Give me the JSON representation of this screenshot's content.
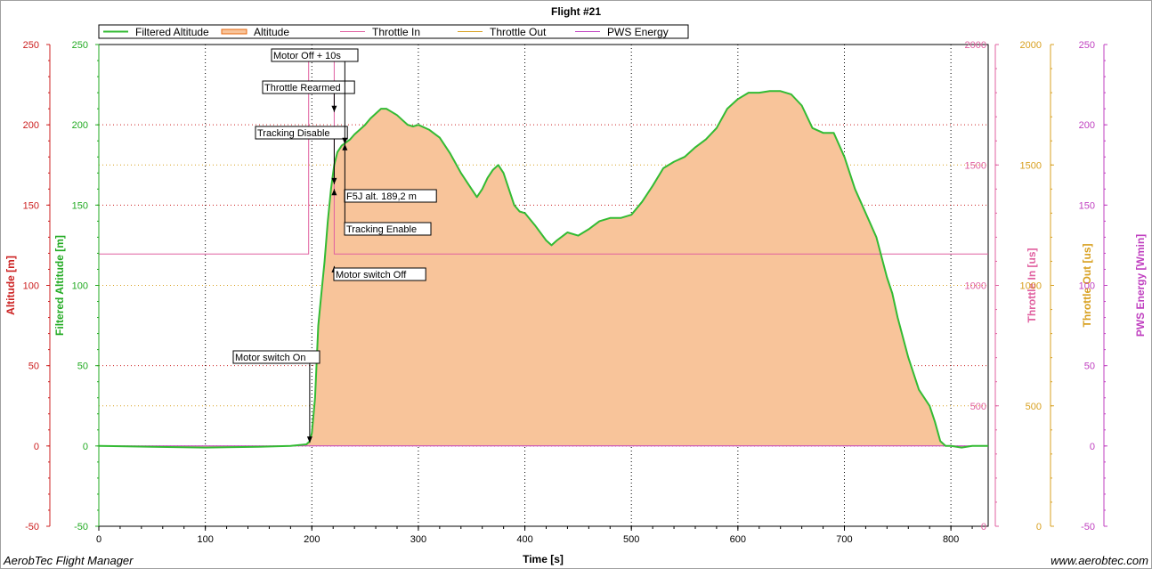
{
  "app": {
    "name_left": "AerobTec Flight Manager",
    "name_right": "www.aerobtec.com"
  },
  "chart_data": {
    "type": "area",
    "title": "Flight #21",
    "xlabel": "Time [s]",
    "xlim": [
      0,
      835
    ],
    "xticks": [
      0,
      100,
      200,
      300,
      400,
      500,
      600,
      700,
      800
    ],
    "legend": {
      "placement": "top-left",
      "entries": [
        {
          "name": "Filtered Altitude",
          "color": "#33bb33"
        },
        {
          "name": "Altitude",
          "color": "#e86a10"
        },
        {
          "name": "Throttle In",
          "color": "#e060a0"
        },
        {
          "name": "Throttle Out",
          "color": "#d8a020"
        },
        {
          "name": "PWS Energy",
          "color": "#c040c0"
        }
      ]
    },
    "axes": [
      {
        "id": "altitude",
        "label": "Altitude [m]",
        "side": "left",
        "color": "#cc2020",
        "range": [
          -50,
          250
        ],
        "ticks": [
          -50,
          0,
          50,
          100,
          150,
          200,
          250
        ]
      },
      {
        "id": "filtered",
        "label": "Filtered Altitude [m]",
        "side": "left",
        "color": "#22aa22",
        "range": [
          -50,
          250
        ],
        "ticks": [
          -50,
          0,
          50,
          100,
          150,
          200,
          250
        ]
      },
      {
        "id": "throttle_in",
        "label": "Throttle In [us]",
        "side": "right",
        "color": "#e060a0",
        "range": [
          0,
          2000
        ],
        "ticks": [
          0,
          500,
          1000,
          1500,
          2000
        ]
      },
      {
        "id": "throttle_out",
        "label": "Throttle Out [us]",
        "side": "right",
        "color": "#d8a020",
        "range": [
          0,
          2000
        ],
        "ticks": [
          0,
          500,
          1000,
          1500,
          2000
        ]
      },
      {
        "id": "pws",
        "label": "PWS Energy [Wmin]",
        "side": "right",
        "color": "#c040c0",
        "range": [
          -50,
          250
        ],
        "ticks": [
          -50,
          0,
          50,
          100,
          150,
          200,
          250
        ]
      }
    ],
    "series": [
      {
        "name": "Filtered Altitude",
        "axis": "filtered",
        "x": [
          0,
          50,
          100,
          150,
          180,
          195,
          198,
          200,
          203,
          206,
          209,
          212,
          215,
          218,
          221,
          224,
          228,
          232,
          236,
          240,
          245,
          250,
          255,
          260,
          265,
          270,
          275,
          280,
          285,
          290,
          295,
          300,
          310,
          320,
          330,
          340,
          350,
          355,
          360,
          365,
          370,
          375,
          380,
          385,
          390,
          395,
          400,
          410,
          420,
          425,
          430,
          440,
          450,
          460,
          470,
          480,
          490,
          500,
          510,
          520,
          530,
          540,
          550,
          560,
          570,
          580,
          590,
          600,
          610,
          620,
          630,
          640,
          650,
          660,
          670,
          680,
          690,
          700,
          710,
          720,
          730,
          740,
          745,
          750,
          760,
          770,
          780,
          785,
          790,
          795,
          800,
          810,
          820,
          835
        ],
        "values": [
          0,
          -0.5,
          -1,
          -0.5,
          0,
          1,
          3,
          8,
          30,
          75,
          95,
          115,
          140,
          160,
          175,
          183,
          187,
          189,
          191,
          194,
          197,
          200,
          204,
          207,
          210,
          210,
          208,
          206,
          203,
          200,
          199,
          200,
          197,
          192,
          182,
          170,
          160,
          155,
          160,
          167,
          172,
          175,
          170,
          160,
          150,
          146,
          145,
          137,
          128,
          125,
          128,
          133,
          131,
          135,
          140,
          142,
          142,
          144,
          152,
          162,
          173,
          177,
          180,
          186,
          191,
          198,
          210,
          216,
          220,
          220,
          221,
          221,
          219,
          212,
          198,
          195,
          195,
          180,
          160,
          145,
          130,
          105,
          95,
          80,
          55,
          35,
          25,
          15,
          3,
          0,
          0,
          -1,
          0,
          0
        ]
      },
      {
        "name": "Altitude",
        "axis": "altitude",
        "x": [
          0,
          50,
          100,
          150,
          180,
          195,
          198,
          200,
          203,
          206,
          209,
          212,
          215,
          218,
          221,
          224,
          228,
          232,
          236,
          240,
          245,
          250,
          255,
          260,
          265,
          270,
          275,
          280,
          285,
          290,
          295,
          300,
          310,
          320,
          330,
          340,
          350,
          355,
          360,
          365,
          370,
          375,
          380,
          385,
          390,
          395,
          400,
          410,
          420,
          425,
          430,
          440,
          450,
          460,
          470,
          480,
          490,
          500,
          510,
          520,
          530,
          540,
          550,
          560,
          570,
          580,
          590,
          600,
          610,
          620,
          630,
          640,
          650,
          660,
          670,
          680,
          690,
          700,
          710,
          720,
          730,
          740,
          745,
          750,
          760,
          770,
          780,
          785,
          790,
          795,
          800,
          810,
          820,
          835
        ],
        "values": [
          0,
          -0.5,
          -1,
          -0.5,
          0,
          1,
          3,
          8,
          30,
          75,
          95,
          115,
          140,
          160,
          175,
          183,
          187,
          189,
          191,
          194,
          197,
          200,
          204,
          207,
          210,
          210,
          208,
          206,
          203,
          200,
          199,
          200,
          197,
          192,
          182,
          170,
          160,
          155,
          160,
          167,
          172,
          175,
          170,
          160,
          150,
          146,
          145,
          137,
          128,
          125,
          128,
          133,
          131,
          135,
          140,
          142,
          142,
          144,
          152,
          162,
          173,
          177,
          180,
          186,
          191,
          198,
          210,
          216,
          220,
          220,
          221,
          221,
          219,
          212,
          198,
          195,
          195,
          180,
          160,
          145,
          130,
          105,
          95,
          80,
          55,
          35,
          25,
          15,
          3,
          0,
          0,
          -1,
          0,
          0
        ]
      },
      {
        "name": "Throttle In",
        "axis": "throttle_in",
        "x": [
          0,
          197,
          197,
          215,
          215,
          221,
          221,
          835
        ],
        "values": [
          1130,
          1130,
          1950,
          1950,
          1950,
          1950,
          1130,
          1130
        ]
      },
      {
        "name": "PWS Energy",
        "axis": "pws",
        "x": [
          0,
          835
        ],
        "values": [
          0,
          0
        ]
      }
    ],
    "annotations": [
      {
        "label": "Motor switch On",
        "x": 198,
        "y": 2
      },
      {
        "label": "Motor switch Off",
        "x": 221,
        "y": 112
      },
      {
        "label": "Tracking Disable",
        "x": 221,
        "y": 163
      },
      {
        "label": "Throttle Rearmed",
        "x": 221,
        "y": 208
      },
      {
        "label": "F5J alt. 189,2 m",
        "x": 221,
        "y": 160
      },
      {
        "label": "Motor Off + 10s",
        "x": 231,
        "y": 188
      },
      {
        "label": "Tracking Enable",
        "x": 231,
        "y": 188
      }
    ]
  }
}
